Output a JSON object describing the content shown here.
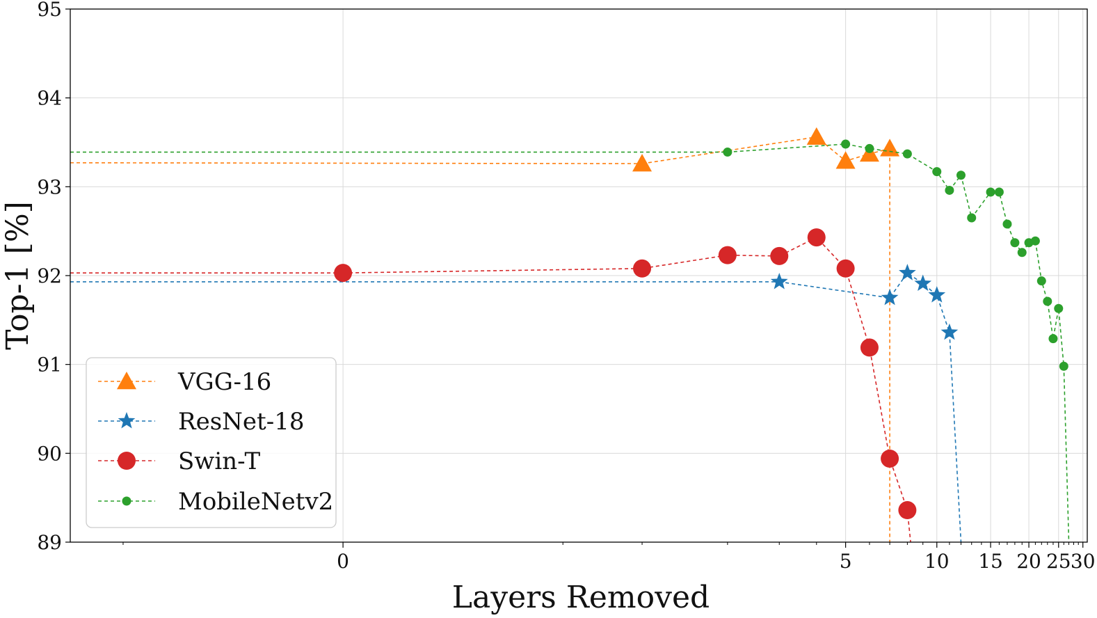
{
  "chart_data": {
    "type": "line",
    "title": "",
    "xlabel": "Layers Removed",
    "ylabel": "Top-1 [%]",
    "xscale": "symlog",
    "xlim": [
      -0.8,
      31
    ],
    "ylim": [
      89,
      95
    ],
    "grid": true,
    "x_ticks": [
      0,
      5,
      10,
      15,
      20,
      25,
      30
    ],
    "x_tick_labels": [
      "0",
      "5",
      "10",
      "15",
      "20",
      "25",
      "30"
    ],
    "y_ticks": [
      89,
      90,
      91,
      92,
      93,
      94,
      95
    ],
    "y_tick_labels": [
      "89",
      "90",
      "91",
      "92",
      "93",
      "94",
      "95"
    ],
    "legend_position": "lower-left",
    "series": [
      {
        "name": "VGG-16",
        "color": "#ff7f0e",
        "marker": "triangle",
        "baseline": 93.27,
        "x": [
          1,
          4,
          5,
          6,
          7,
          7
        ],
        "y": [
          93.26,
          93.56,
          93.29,
          93.37,
          93.43,
          89
        ]
      },
      {
        "name": "ResNet-18",
        "color": "#1f77b4",
        "marker": "star",
        "baseline": 91.93,
        "x": [
          3,
          7,
          8,
          9,
          10,
          11,
          12
        ],
        "y": [
          91.93,
          91.75,
          92.03,
          91.91,
          91.78,
          91.36,
          89
        ]
      },
      {
        "name": "Swin-T",
        "color": "#d62728",
        "marker": "circle-large",
        "baseline": 92.03,
        "x": [
          0,
          1,
          2,
          3,
          4,
          5,
          6,
          7,
          8,
          8.2
        ],
        "y": [
          92.03,
          92.08,
          92.23,
          92.22,
          92.43,
          92.08,
          91.19,
          89.94,
          89.36,
          89
        ]
      },
      {
        "name": "MobileNetv2",
        "color": "#2ca02c",
        "marker": "circle-small",
        "baseline": 93.39,
        "x": [
          2,
          5,
          6,
          8,
          10,
          11,
          12,
          13,
          15,
          16,
          17,
          18,
          19,
          20,
          21,
          22,
          23,
          24,
          25,
          26,
          27
        ],
        "y": [
          93.39,
          93.48,
          93.43,
          93.37,
          93.17,
          92.96,
          93.13,
          92.65,
          92.94,
          92.94,
          92.58,
          92.37,
          92.26,
          92.37,
          92.39,
          91.94,
          91.71,
          91.29,
          91.63,
          90.98,
          89
        ]
      }
    ]
  }
}
